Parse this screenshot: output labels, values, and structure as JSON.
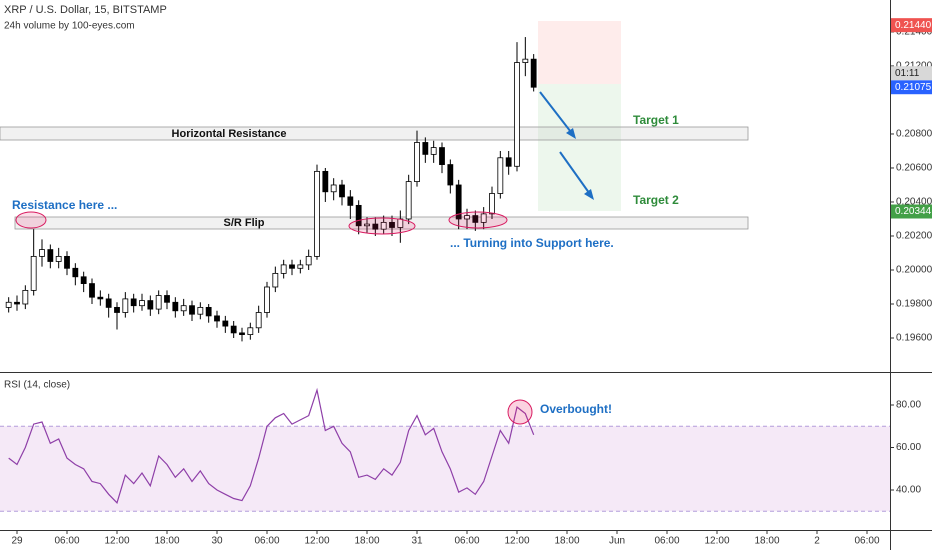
{
  "chart_data": [
    {
      "type": "candlestick",
      "title": "XRP / U.S. Dollar, 15, BITSTAMP",
      "subtitle": "24h volume by 100-eyes.com",
      "x": [
        -1,
        0,
        1,
        2,
        3,
        4,
        5,
        6,
        7,
        8,
        9,
        10,
        11,
        12,
        13,
        14,
        15,
        16,
        17,
        18,
        19,
        20,
        21,
        22,
        23,
        24,
        25,
        26,
        27,
        28,
        29,
        30,
        31,
        32,
        33,
        34,
        35,
        36,
        37,
        38,
        39,
        40,
        41,
        42,
        43,
        44,
        45,
        46,
        47,
        48,
        49,
        50,
        51,
        52,
        53,
        54,
        55,
        56,
        57,
        58,
        59,
        60,
        61,
        62
      ],
      "open": [
        0.1978,
        0.1981,
        0.198,
        0.1988,
        0.2008,
        0.2012,
        0.2005,
        0.2008,
        0.2001,
        0.1996,
        0.1992,
        0.1984,
        0.1983,
        0.1978,
        0.1975,
        0.1983,
        0.1979,
        0.1982,
        0.1977,
        0.1985,
        0.1981,
        0.1976,
        0.1979,
        0.1974,
        0.1978,
        0.1973,
        0.197,
        0.1967,
        0.1963,
        0.1962,
        0.1966,
        0.1975,
        0.199,
        0.1998,
        0.2003,
        0.2001,
        0.2003,
        0.2008,
        0.2058,
        0.2046,
        0.205,
        0.2043,
        0.2038,
        0.2026,
        0.2027,
        0.2024,
        0.2028,
        0.2025,
        0.203,
        0.2052,
        0.2075,
        0.2068,
        0.2072,
        0.2062,
        0.205,
        0.203,
        0.2032,
        0.2028,
        0.2033,
        0.2045,
        0.2066,
        0.2061,
        0.2122,
        0.2124
      ],
      "high": [
        0.1984,
        0.1985,
        0.1991,
        0.2024,
        0.2018,
        0.2015,
        0.2013,
        0.2011,
        0.2004,
        0.1999,
        0.1995,
        0.1988,
        0.1986,
        0.1981,
        0.1987,
        0.1986,
        0.1986,
        0.1985,
        0.1988,
        0.1988,
        0.1984,
        0.1983,
        0.1982,
        0.1981,
        0.198,
        0.1976,
        0.1973,
        0.197,
        0.1966,
        0.1969,
        0.1979,
        0.1993,
        0.2002,
        0.2006,
        0.2006,
        0.2006,
        0.2012,
        0.2062,
        0.206,
        0.2054,
        0.2053,
        0.2047,
        0.2041,
        0.2031,
        0.2031,
        0.2032,
        0.2032,
        0.2035,
        0.2056,
        0.2082,
        0.2078,
        0.2076,
        0.2075,
        0.2065,
        0.2053,
        0.2036,
        0.2035,
        0.2037,
        0.2049,
        0.207,
        0.207,
        0.2134,
        0.2137,
        0.2127
      ],
      "low": [
        0.1975,
        0.1976,
        0.1977,
        0.1985,
        0.2002,
        0.2001,
        0.2001,
        0.1997,
        0.1991,
        0.1987,
        0.198,
        0.1979,
        0.1972,
        0.1965,
        0.1972,
        0.1975,
        0.1976,
        0.1973,
        0.1974,
        0.1977,
        0.1972,
        0.1973,
        0.197,
        0.1971,
        0.1969,
        0.1966,
        0.1963,
        0.196,
        0.1958,
        0.1959,
        0.1963,
        0.1972,
        0.1987,
        0.1995,
        0.1997,
        0.1998,
        0.2,
        0.2006,
        0.204,
        0.2041,
        0.2038,
        0.203,
        0.2021,
        0.2022,
        0.202,
        0.2021,
        0.202,
        0.2016,
        0.2027,
        0.2049,
        0.2063,
        0.2063,
        0.2057,
        0.2045,
        0.2024,
        0.2024,
        0.2023,
        0.2024,
        0.203,
        0.2042,
        0.2056,
        0.2058,
        0.2114,
        0.2105
      ],
      "close": [
        0.1981,
        0.198,
        0.1988,
        0.2008,
        0.2012,
        0.2005,
        0.2008,
        0.2001,
        0.1996,
        0.1992,
        0.1984,
        0.1983,
        0.1978,
        0.1975,
        0.1983,
        0.1979,
        0.1982,
        0.1977,
        0.1985,
        0.1981,
        0.1976,
        0.1979,
        0.1974,
        0.1978,
        0.1973,
        0.197,
        0.1967,
        0.1963,
        0.1962,
        0.1966,
        0.1975,
        0.199,
        0.1998,
        0.2003,
        0.2001,
        0.2003,
        0.2008,
        0.2058,
        0.2046,
        0.205,
        0.2043,
        0.2038,
        0.2026,
        0.2027,
        0.2024,
        0.2028,
        0.2025,
        0.203,
        0.2052,
        0.2075,
        0.2068,
        0.2072,
        0.2062,
        0.205,
        0.203,
        0.2032,
        0.2028,
        0.2033,
        0.2045,
        0.2066,
        0.2061,
        0.2122,
        0.2124,
        0.21075
      ],
      "up_color": "#ffffff",
      "down_color": "#000000",
      "xlim": [
        -2.04,
        104.76
      ],
      "ylim": [
        0.194,
        0.21588
      ],
      "yticks": [
        {
          "value": 0.196,
          "label": "0.19600"
        },
        {
          "value": 0.198,
          "label": "0.19800"
        },
        {
          "value": 0.2,
          "label": "0.20000"
        },
        {
          "value": 0.202,
          "label": "0.20200"
        },
        {
          "value": 0.204,
          "label": "0.20400"
        },
        {
          "value": 0.206,
          "label": "0.20600"
        },
        {
          "value": 0.208,
          "label": "0.20800"
        },
        {
          "value": 0.212,
          "label": "0.21200"
        },
        {
          "value": 0.214,
          "label": "0.21400"
        }
      ],
      "price_tags": [
        {
          "value": 0.2144,
          "label": "0.21440",
          "color": "#ef5350"
        },
        {
          "value": 0.21075,
          "label": "0.21075",
          "color": "#2962ff"
        },
        {
          "value": 0.20344,
          "label": "0.20344",
          "color": "#43a047"
        }
      ],
      "countdown": "01:11",
      "annotations": [
        "Horizontal Resistance",
        "S/R Flip",
        "Resistance here ...",
        "... Turning into Support here.",
        "Target 1",
        "Target 2"
      ]
    },
    {
      "type": "line",
      "title": "RSI (14, close)",
      "x": [
        -1,
        0,
        1,
        2,
        3,
        4,
        5,
        6,
        7,
        8,
        9,
        10,
        11,
        12,
        13,
        14,
        15,
        16,
        17,
        18,
        19,
        20,
        21,
        22,
        23,
        24,
        25,
        26,
        27,
        28,
        29,
        30,
        31,
        32,
        33,
        34,
        35,
        36,
        37,
        38,
        39,
        40,
        41,
        42,
        43,
        44,
        45,
        46,
        47,
        48,
        49,
        50,
        51,
        52,
        53,
        54,
        55,
        56,
        57,
        58,
        59,
        60,
        61,
        62
      ],
      "values": [
        55,
        52,
        60,
        71,
        72,
        62,
        64,
        55,
        52,
        50,
        44,
        43,
        38,
        34,
        47,
        43,
        48,
        42,
        56,
        52,
        46,
        50,
        44,
        49,
        43,
        40,
        38,
        36,
        35,
        42,
        55,
        70,
        74,
        76,
        71,
        73,
        75,
        87,
        68,
        70,
        62,
        58,
        46,
        47,
        45,
        50,
        47,
        53,
        68,
        75,
        66,
        69,
        58,
        50,
        39,
        41,
        38,
        44,
        56,
        68,
        62,
        79,
        76,
        66
      ],
      "color": "#8e3fa8",
      "band": [
        30,
        70
      ],
      "xlim": [
        -2.04,
        104.76
      ],
      "ylim": [
        21.18,
        95.06
      ],
      "yticks": [
        {
          "value": 40,
          "label": "40.00"
        },
        {
          "value": 60,
          "label": "60.00"
        },
        {
          "value": 80,
          "label": "80.00"
        }
      ],
      "xticks": [
        {
          "value": 0,
          "label": "29"
        },
        {
          "value": 6,
          "label": "06:00"
        },
        {
          "value": 12,
          "label": "12:00"
        },
        {
          "value": 18,
          "label": "18:00"
        },
        {
          "value": 24,
          "label": "30"
        },
        {
          "value": 30,
          "label": "06:00"
        },
        {
          "value": 36,
          "label": "12:00"
        },
        {
          "value": 42,
          "label": "18:00"
        },
        {
          "value": 48,
          "label": "31"
        },
        {
          "value": 54,
          "label": "06:00"
        },
        {
          "value": 60,
          "label": "12:00"
        },
        {
          "value": 66,
          "label": "18:00"
        },
        {
          "value": 72,
          "label": "Jun"
        },
        {
          "value": 78,
          "label": "06:00"
        },
        {
          "value": 84,
          "label": "12:00"
        },
        {
          "value": 90,
          "label": "18:00"
        },
        {
          "value": 96,
          "label": "2"
        },
        {
          "value": 102,
          "label": "06:00"
        }
      ],
      "annotations": [
        "Overbought!"
      ]
    }
  ]
}
